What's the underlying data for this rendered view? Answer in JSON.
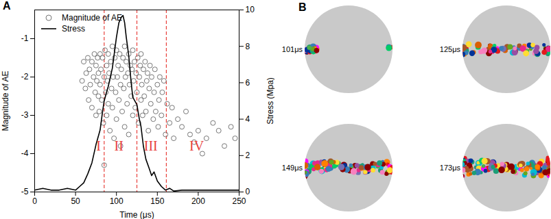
{
  "chart_data": {
    "type": "scatter",
    "title": "A",
    "xlabel": "Time (μs)",
    "ylabel": "Magnitude of AE",
    "y2label": "Stress (Mpa)",
    "xlim": [
      0,
      250
    ],
    "xticks": [
      0,
      50,
      100,
      150,
      200,
      250
    ],
    "ylim": [
      -5,
      -0.25
    ],
    "yticks": [
      -5,
      -4,
      -3,
      -2,
      -1
    ],
    "y2lim": [
      0,
      10
    ],
    "y2ticks": [
      0,
      2,
      4,
      6,
      8,
      10
    ],
    "vlines": [
      85,
      125,
      161
    ],
    "annotations": [
      {
        "text": "I",
        "x": 78,
        "y": -3.8
      },
      {
        "text": "II",
        "x": 103,
        "y": -3.8
      },
      {
        "text": "III",
        "x": 142,
        "y": -3.8
      },
      {
        "text": "IV",
        "x": 198,
        "y": -3.8
      }
    ],
    "series": [
      {
        "name": "Magnitude of AE",
        "type": "scatter",
        "marker": "circle",
        "color": "#777777",
        "x": [
          58,
          60,
          62,
          63,
          65,
          66,
          67,
          68,
          70,
          70,
          72,
          73,
          74,
          75,
          75,
          76,
          77,
          78,
          78,
          79,
          80,
          80,
          81,
          82,
          83,
          84,
          85,
          85,
          86,
          87,
          88,
          88,
          89,
          90,
          90,
          91,
          92,
          93,
          94,
          95,
          95,
          96,
          97,
          98,
          99,
          100,
          100,
          101,
          102,
          103,
          104,
          105,
          105,
          106,
          107,
          108,
          109,
          110,
          110,
          111,
          112,
          113,
          114,
          115,
          115,
          116,
          117,
          118,
          119,
          120,
          120,
          121,
          122,
          123,
          124,
          125,
          126,
          127,
          128,
          129,
          130,
          130,
          131,
          132,
          133,
          134,
          135,
          136,
          137,
          138,
          139,
          140,
          141,
          142,
          143,
          145,
          146,
          147,
          148,
          150,
          151,
          152,
          153,
          155,
          156,
          158,
          160,
          162,
          165,
          168,
          170,
          175,
          180,
          185,
          190,
          195,
          200,
          205,
          210,
          218,
          225,
          232,
          240,
          245
        ],
        "values": [
          -2.1,
          -1.6,
          -2.3,
          -1.9,
          -1.5,
          -2.6,
          -1.8,
          -2.2,
          -1.6,
          -2.8,
          -2.0,
          -1.4,
          -2.4,
          -1.7,
          -3.0,
          -2.1,
          -1.5,
          -2.5,
          -1.9,
          -2.9,
          -1.4,
          -2.2,
          -1.8,
          -2.6,
          -1.5,
          -3.2,
          -2.0,
          -4.3,
          -1.3,
          -2.4,
          -1.7,
          -3.0,
          -2.1,
          -1.4,
          -2.7,
          -1.9,
          -3.4,
          -1.6,
          -2.3,
          -1.2,
          -2.8,
          -2.0,
          -3.6,
          -1.5,
          -2.4,
          -1.3,
          -3.1,
          -2.0,
          -1.7,
          -2.6,
          -1.4,
          -2.2,
          -3.8,
          -1.8,
          -2.9,
          -1.5,
          -2.3,
          -1.2,
          -3.3,
          -2.0,
          -1.6,
          -2.7,
          -1.9,
          -1.4,
          -3.5,
          -2.2,
          -1.7,
          -2.5,
          -1.8,
          -1.3,
          -3.0,
          -2.1,
          -1.6,
          -2.8,
          -1.9,
          -2.4,
          -1.5,
          -3.2,
          -2.0,
          -1.7,
          -2.6,
          -1.4,
          -2.2,
          -3.0,
          -1.8,
          -2.5,
          -1.6,
          -2.9,
          -2.1,
          -1.9,
          -3.4,
          -2.3,
          -1.7,
          -2.7,
          -2.0,
          -3.1,
          -2.4,
          -1.8,
          -2.9,
          -2.2,
          -3.3,
          -2.6,
          -2.0,
          -3.0,
          -2.4,
          -2.1,
          -3.5,
          -2.7,
          -3.2,
          -2.8,
          -3.6,
          -3.1,
          -3.3,
          -2.9,
          -3.5,
          -3.7,
          -3.4,
          -4.0,
          -3.6,
          -3.2,
          -3.4,
          -3.8,
          -3.3,
          -3.6
        ]
      },
      {
        "name": "Stress",
        "type": "line",
        "axis": "y2",
        "color": "#000000",
        "x": [
          0,
          10,
          20,
          30,
          40,
          50,
          55,
          60,
          65,
          70,
          75,
          80,
          83,
          85,
          88,
          90,
          95,
          100,
          103,
          106,
          108,
          110,
          112,
          115,
          118,
          120,
          125,
          128,
          130,
          133,
          136,
          140,
          143,
          146,
          150,
          155,
          160,
          165,
          170,
          180,
          190,
          200,
          210,
          220,
          230,
          240,
          250
        ],
        "values": [
          0.1,
          0.2,
          0.1,
          0.1,
          0.2,
          0.1,
          0.3,
          0.5,
          1.0,
          1.6,
          2.6,
          3.4,
          4.4,
          5.0,
          5.5,
          5.8,
          6.8,
          8.5,
          9.3,
          9.6,
          9.7,
          9.3,
          8.5,
          7.5,
          6.0,
          5.2,
          4.8,
          4.0,
          3.6,
          2.5,
          1.8,
          1.3,
          0.9,
          1.1,
          0.6,
          0.3,
          0.1,
          0.2,
          0.05,
          0.1,
          0.1,
          0.1,
          0.1,
          0.1,
          0.1,
          0.1,
          0.1
        ]
      }
    ]
  },
  "panel_b": {
    "title": "B",
    "snapshots": [
      "101μs",
      "125μs",
      "149μs",
      "173μs"
    ]
  }
}
